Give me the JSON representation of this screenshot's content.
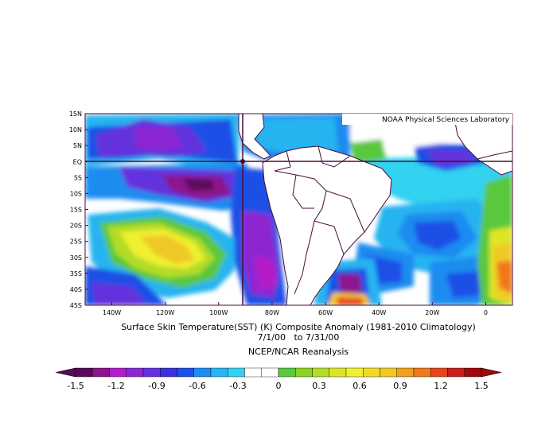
{
  "map": {
    "credit": "NOAA Physical Sciences Laboratory",
    "title_line1": "Surface Skin Temperature(SST) (K) Composite Anomaly (1981-2010 Climatology)",
    "title_line2": "7/1/00   to 7/31/00",
    "title_line3": "NCEP/NCAR Reanalysis",
    "lat_labels": [
      "15N",
      "10N",
      "5N",
      "EQ",
      "5S",
      "10S",
      "15S",
      "20S",
      "25S",
      "30S",
      "35S",
      "40S",
      "45S"
    ],
    "lon_labels": [
      "140W",
      "120W",
      "100W",
      "80W",
      "60W",
      "40W",
      "20W",
      "0"
    ],
    "crosshair": {
      "lon": "90W",
      "lat": "EQ"
    }
  },
  "colorbar": {
    "tick_labels": [
      "-1.5",
      "-1.2",
      "-0.9",
      "-0.6",
      "-0.3",
      "0",
      "0.3",
      "0.6",
      "0.9",
      "1.2",
      "1.5"
    ],
    "colors": [
      "#5a0a5a",
      "#8c148c",
      "#b41ec8",
      "#8c28d2",
      "#6432dc",
      "#3c32dc",
      "#1e50e6",
      "#1e8cf0",
      "#28b4f0",
      "#32d2f0",
      "#ffffff",
      "#ffffff",
      "#5ac83c",
      "#8cd228",
      "#b4dc28",
      "#dce628",
      "#f0f032",
      "#f0dc28",
      "#f0c828",
      "#f0a01e",
      "#f0781e",
      "#e6461e",
      "#c81e1e",
      "#a00a0a"
    ]
  }
}
